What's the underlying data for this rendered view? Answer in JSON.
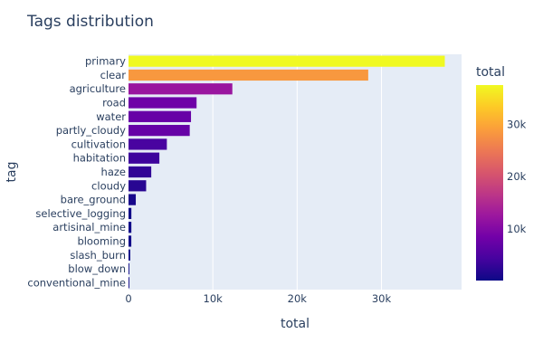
{
  "chart_data": {
    "type": "bar",
    "orientation": "horizontal",
    "title": "Tags distribution",
    "xlabel": "total",
    "ylabel": "tag",
    "categories": [
      "primary",
      "clear",
      "agriculture",
      "road",
      "water",
      "partly_cloudy",
      "cultivation",
      "habitation",
      "haze",
      "cloudy",
      "bare_ground",
      "selective_logging",
      "artisinal_mine",
      "blooming",
      "slash_burn",
      "blow_down",
      "conventional_mine"
    ],
    "values": [
      37513,
      28431,
      12315,
      8071,
      7411,
      7261,
      4547,
      3660,
      2697,
      2089,
      862,
      340,
      339,
      332,
      209,
      101,
      100
    ],
    "xlim": [
      0,
      39500
    ],
    "xticks": [
      0,
      10000,
      20000,
      30000
    ],
    "xtick_labels": [
      "0",
      "10k",
      "20k",
      "30k"
    ],
    "grid": true,
    "colorbar": {
      "title": "total",
      "min": 100,
      "max": 37513,
      "ticks": [
        10000,
        20000,
        30000
      ],
      "tick_labels": [
        "10k",
        "20k",
        "30k"
      ],
      "colorscale": [
        "#0d0887",
        "#46039f",
        "#7201a8",
        "#9c179e",
        "#bd3786",
        "#d8576b",
        "#ed7953",
        "#fb9f3a",
        "#fdca26",
        "#f0f921"
      ]
    },
    "plot_background": "#e5ecf6"
  }
}
